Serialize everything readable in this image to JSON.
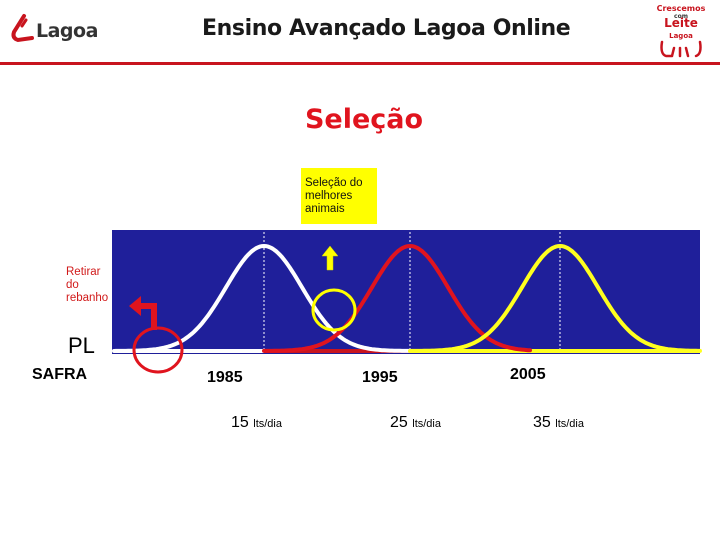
{
  "header": {
    "logo_left_text": "Lagoa",
    "title": "Ensino Avançado Lagoa Online",
    "logo_right_lines": [
      "Crescemos",
      "com",
      "Leite",
      "Lagoa"
    ]
  },
  "slide": {
    "title": "Seleção",
    "note_lines": [
      "Seleção do",
      "melhores",
      "animais"
    ],
    "side_label_lines": [
      "Retirar",
      "do",
      "rebanho"
    ],
    "axis_label": "PL",
    "row_label": "SAFRA",
    "years": [
      "1985",
      "1995",
      "2005"
    ],
    "yields": [
      {
        "value": "15",
        "unit": "lts/dia"
      },
      {
        "value": "25",
        "unit": "lts/dia"
      },
      {
        "value": "35",
        "unit": "lts/dia"
      }
    ]
  },
  "colors": {
    "accent_red": "#e0141e",
    "plot_background": "#1f1f9a",
    "curve_white": "#ffffff",
    "curve_red": "#e0141e",
    "curve_yellow": "#ffff1e",
    "highlight_box": "#ffff00",
    "up_arrow": "#ffff00"
  },
  "icons": [
    "lagoa-logo-icon",
    "crescemos-com-leite-logo-icon",
    "up-arrow-icon",
    "turn-arrow-icon",
    "highlight-circle-icon"
  ]
}
